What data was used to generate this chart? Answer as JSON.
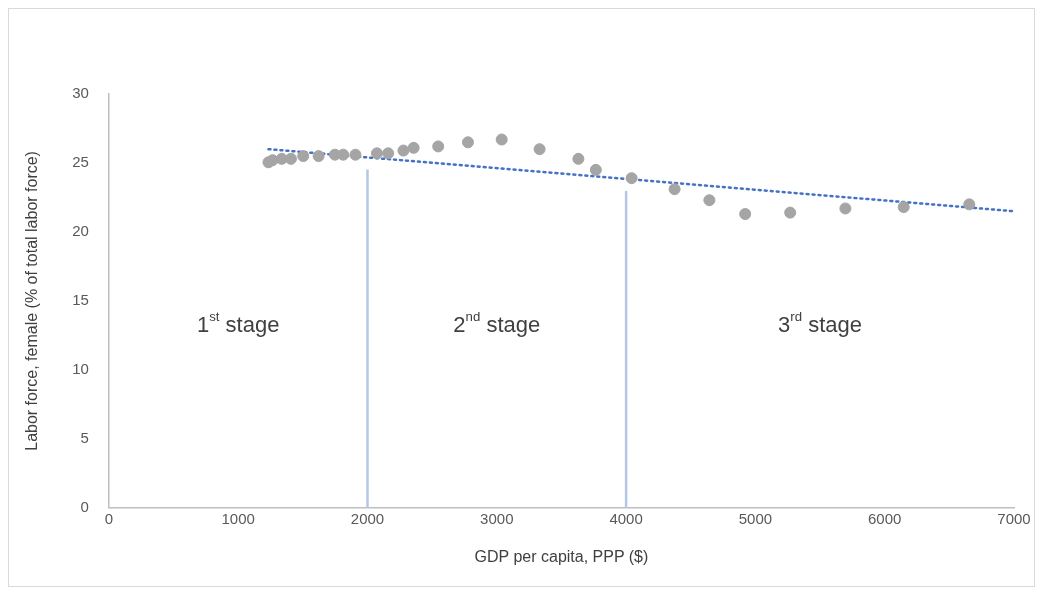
{
  "chart_data": {
    "type": "scatter",
    "xlabel": "GDP per capita, PPP ($)",
    "ylabel": "Labor force, female (% of total labor force)",
    "xlim": [
      0,
      7000
    ],
    "xticks": [
      0,
      1000,
      2000,
      3000,
      4000,
      5000,
      6000,
      7000
    ],
    "ylim": [
      0,
      30
    ],
    "yticks": [
      0,
      5,
      10,
      15,
      20,
      25,
      30
    ],
    "grid": false,
    "legend": false,
    "marker": "circle",
    "series": [
      {
        "color": "#a5a5a5",
        "x": [
          1234,
          1266,
          1337,
          1408,
          1503,
          1622,
          1748,
          1812,
          1907,
          2073,
          2160,
          2278,
          2357,
          2547,
          2777,
          3038,
          3331,
          3631,
          3766,
          4043,
          4375,
          4644,
          4921,
          5269,
          5696,
          6147,
          6654
        ],
        "values": [
          25.05,
          25.2,
          25.3,
          25.3,
          25.5,
          25.5,
          25.6,
          25.6,
          25.6,
          25.7,
          25.7,
          25.9,
          26.1,
          26.2,
          26.5,
          26.7,
          26.0,
          25.3,
          24.5,
          23.9,
          23.1,
          22.3,
          21.3,
          21.4,
          21.7,
          21.8,
          22.0
        ]
      },
      {
        "type": "line",
        "color": "#4472c4",
        "line_style": "dotted",
        "marker": "none",
        "x": [
          1234,
          7000
        ],
        "values": [
          26.0,
          21.5
        ]
      }
    ],
    "ref_lines": [
      {
        "axis": "x",
        "value": 2000,
        "color": "#b4c7e7"
      },
      {
        "axis": "x",
        "value": 4000,
        "color": "#b4c7e7"
      }
    ],
    "annotations": [
      "1$^{st}$ stage",
      "2$^{nd}$ stage",
      "3$^{rd}$ stage"
    ]
  }
}
